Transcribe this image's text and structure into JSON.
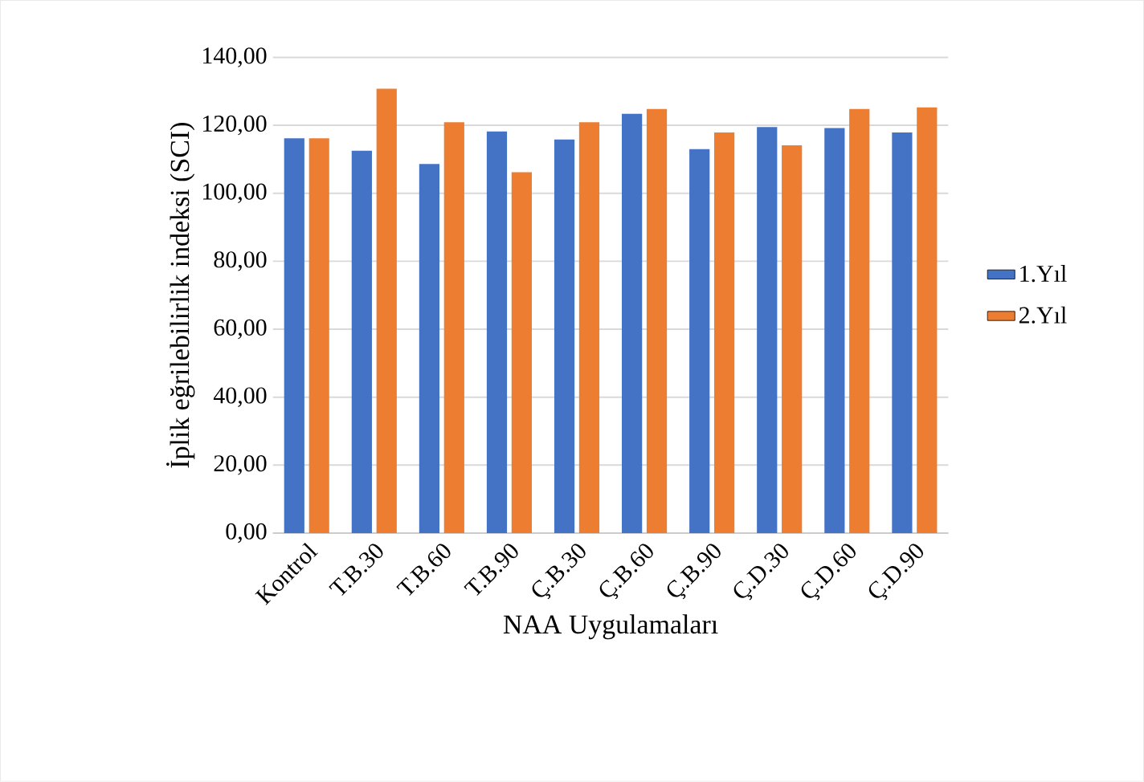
{
  "chart_data": {
    "type": "bar",
    "xlabel": "NAA Uygulamaları",
    "ylabel": "İplik eğrilebilirlik indeksi (SCI)",
    "categories": [
      "Kontrol",
      "T.B.30",
      "T.B.60",
      "T.B.90",
      "Ç.B.30",
      "Ç.B.60",
      "Ç.B.90",
      "Ç.D.30",
      "Ç.D.60",
      "Ç.D.90"
    ],
    "series": [
      {
        "name": "1.Yıl",
        "color": "#4472c4",
        "values": [
          116.2,
          112.5,
          108.6,
          118.2,
          115.8,
          123.4,
          113.0,
          119.5,
          119.2,
          117.9
        ]
      },
      {
        "name": "2.Yıl",
        "color": "#ed7d31",
        "values": [
          116.2,
          130.8,
          120.9,
          106.2,
          120.9,
          124.8,
          117.9,
          114.1,
          124.8,
          125.3
        ]
      }
    ],
    "ylim": [
      0,
      140
    ],
    "yticks": [
      {
        "value": 0,
        "label": "0,00"
      },
      {
        "value": 20,
        "label": "20,00"
      },
      {
        "value": 40,
        "label": "40,00"
      },
      {
        "value": 60,
        "label": "60,00"
      },
      {
        "value": 80,
        "label": "80,00"
      },
      {
        "value": 100,
        "label": "100,00"
      },
      {
        "value": 120,
        "label": "120,00"
      },
      {
        "value": 140,
        "label": "140,00"
      }
    ],
    "grid": "y",
    "legend": "right"
  }
}
